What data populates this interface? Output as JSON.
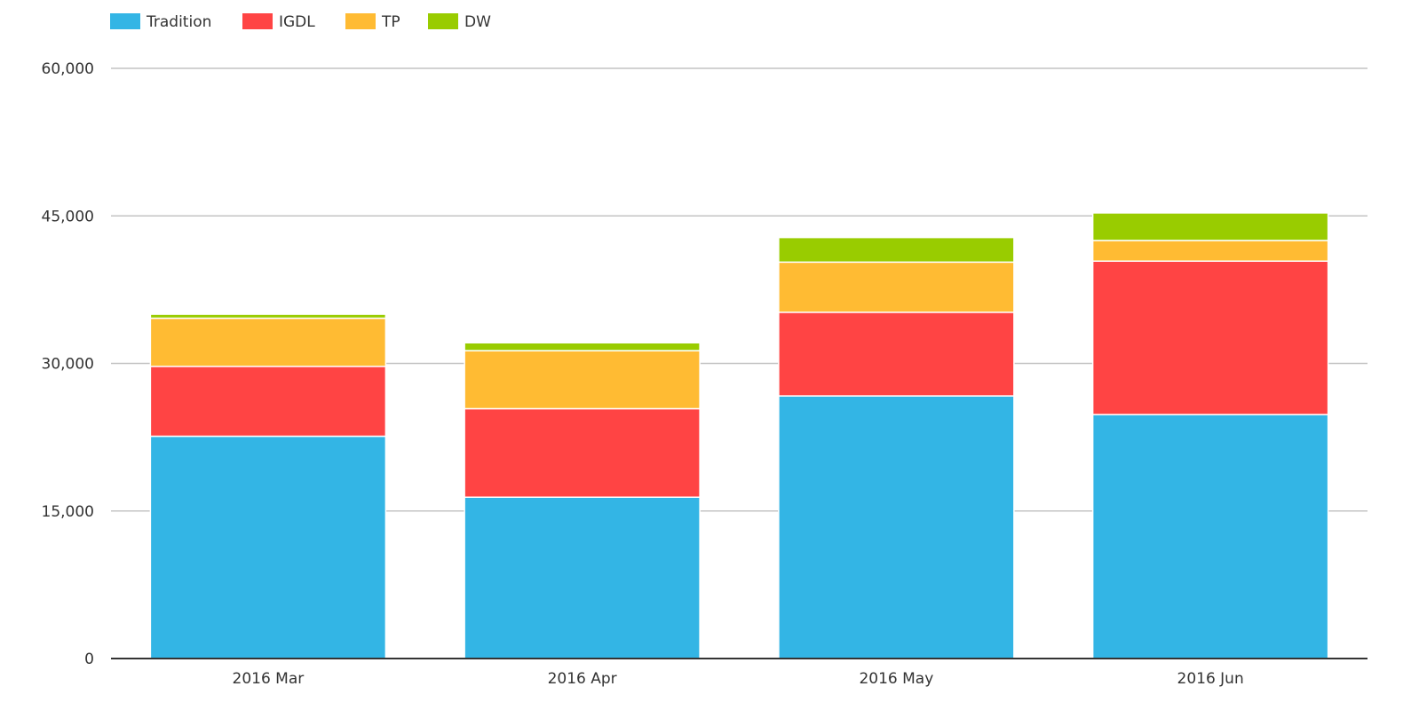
{
  "chart_data": {
    "type": "bar",
    "stacked": true,
    "title": "",
    "xlabel": "",
    "ylabel": "",
    "categories": [
      "2016 Mar",
      "2016 Apr",
      "2016 May",
      "2016 Jun"
    ],
    "series": [
      {
        "name": "Tradition",
        "color": "#33b5e5",
        "values": [
          22600,
          16400,
          26700,
          24800
        ]
      },
      {
        "name": "IGDL",
        "color": "#ff4444",
        "values": [
          7100,
          9000,
          8500,
          15600
        ]
      },
      {
        "name": "TP",
        "color": "#ffbb33",
        "values": [
          4900,
          5900,
          5100,
          2100
        ]
      },
      {
        "name": "DW",
        "color": "#99cc00",
        "values": [
          400,
          800,
          2500,
          2800
        ]
      }
    ],
    "ylim": [
      0,
      60000
    ],
    "yticks": [
      0,
      15000,
      30000,
      45000,
      60000
    ],
    "ytick_labels": [
      "0",
      "15,000",
      "30,000",
      "45,000",
      "60,000"
    ],
    "grid": true,
    "legend_position": "top-left"
  }
}
